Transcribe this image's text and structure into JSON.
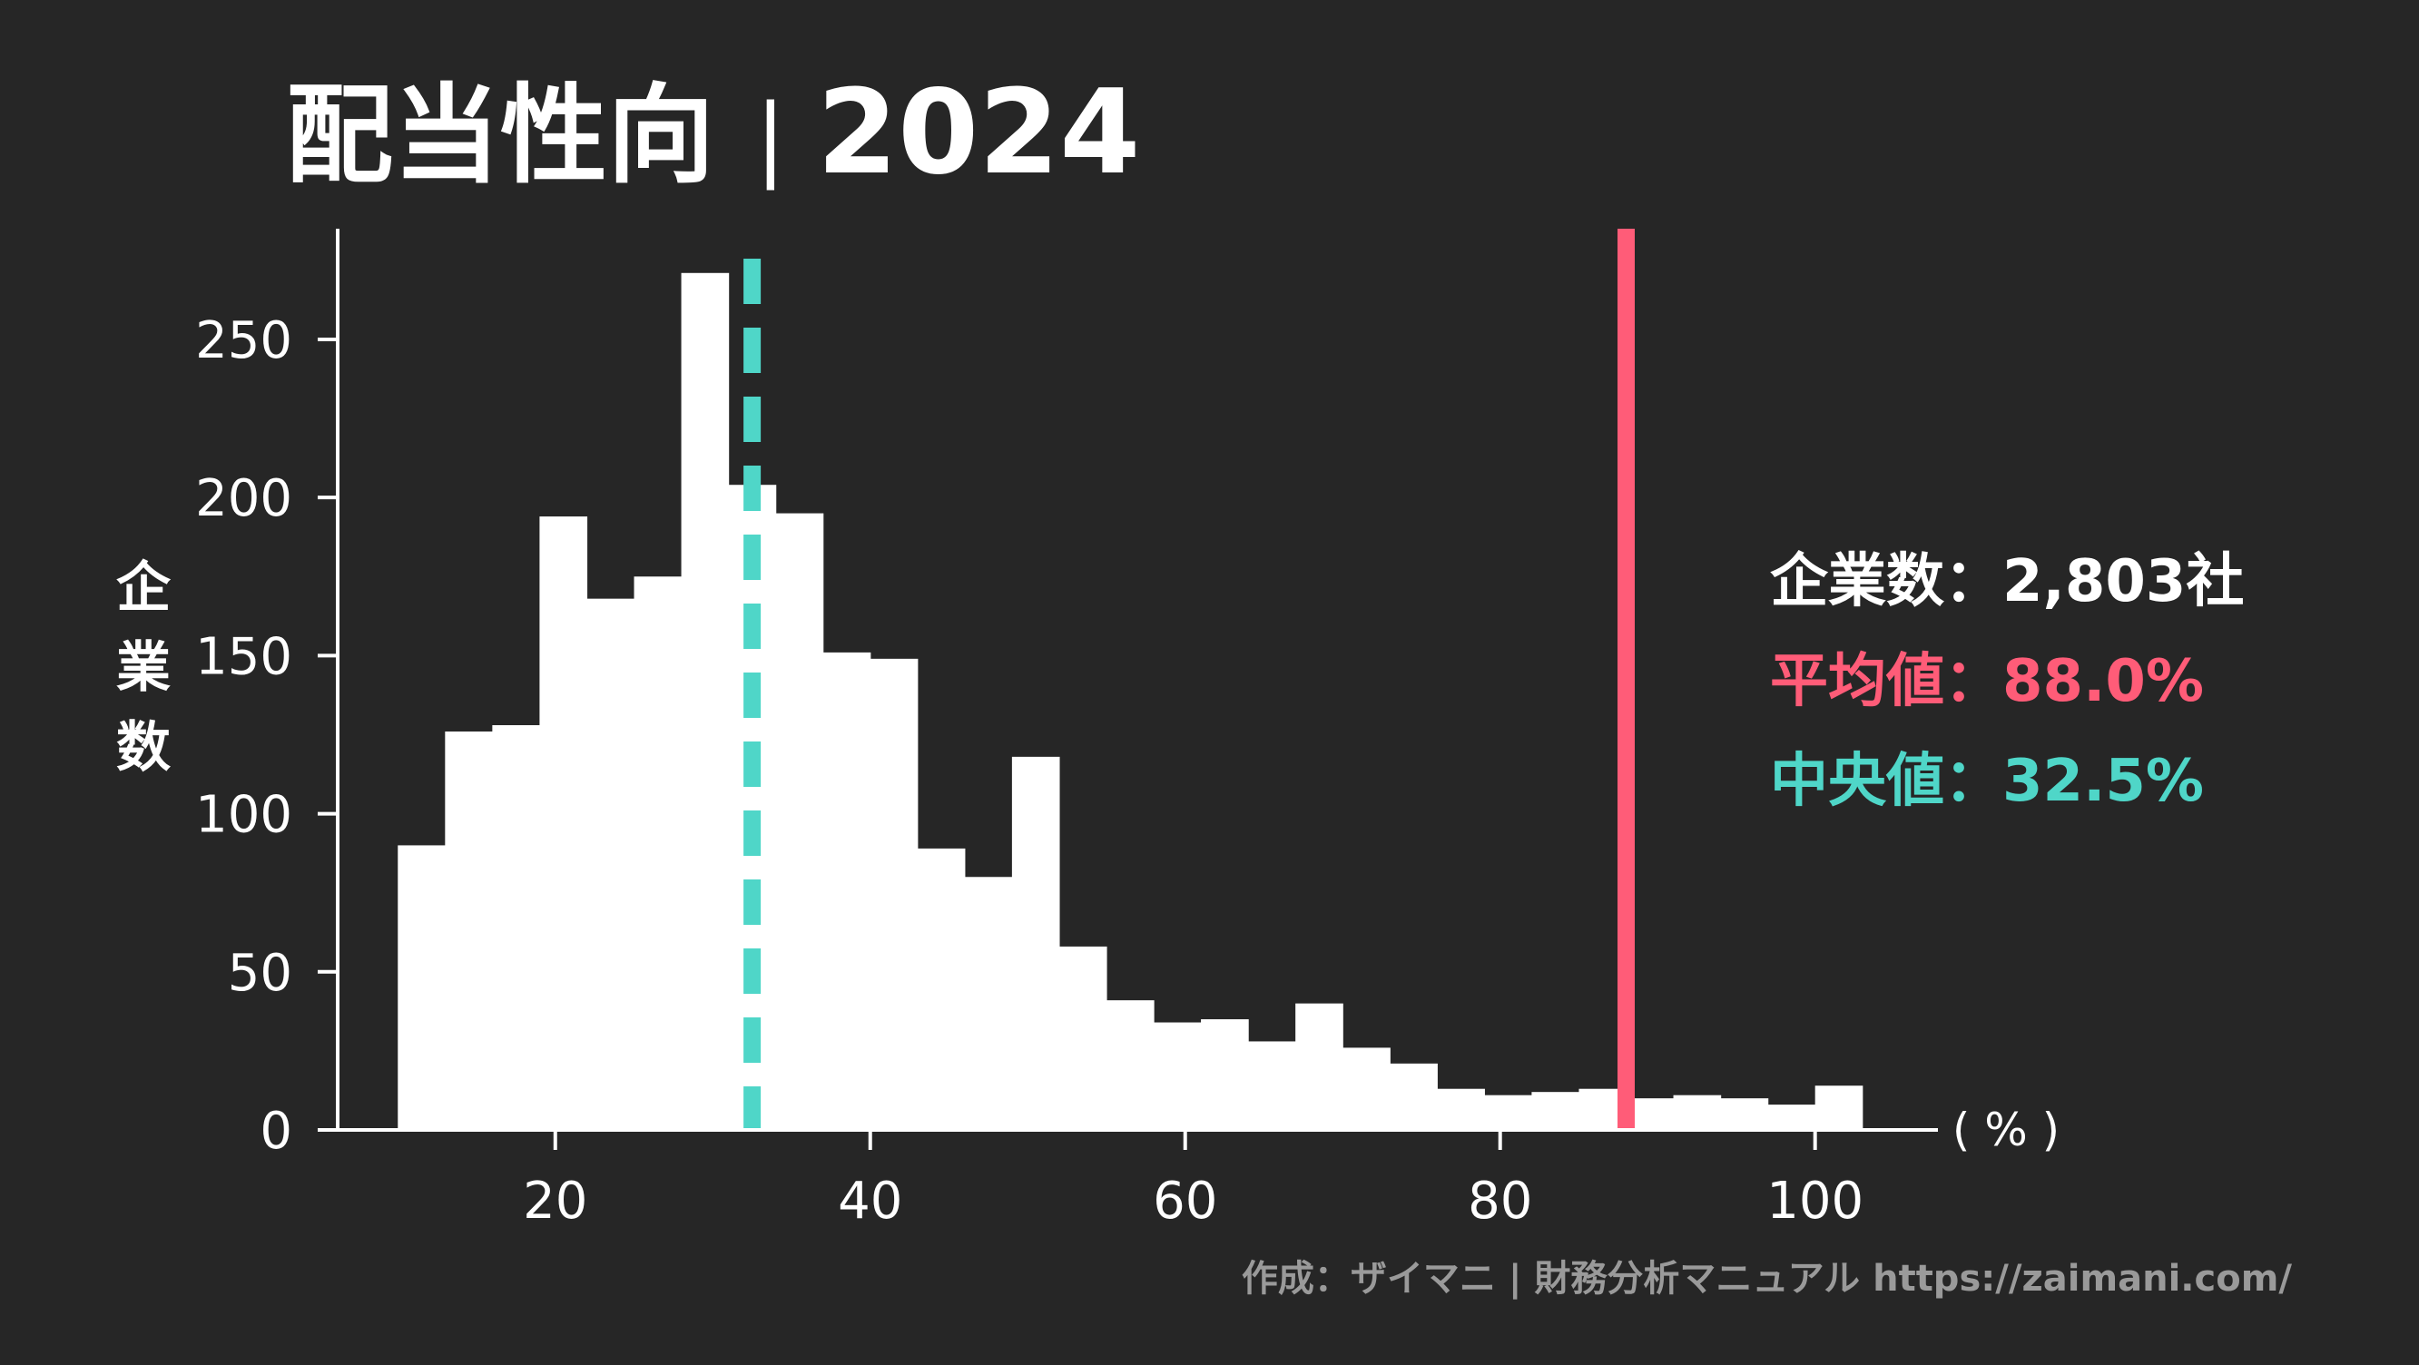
{
  "chart_data": {
    "type": "bar",
    "title": "配当性向",
    "title_separator": "|",
    "year": "2024",
    "ylabel": "企業数",
    "xunit": "( % )",
    "bin_width": 3.0,
    "bin_start": 10.0,
    "values": [
      90,
      126,
      128,
      194,
      168,
      175,
      271,
      204,
      195,
      151,
      149,
      89,
      80,
      118,
      58,
      41,
      34,
      35,
      28,
      40,
      26,
      21,
      13,
      11,
      12,
      13,
      10,
      11,
      10,
      8,
      14
    ],
    "xlim": [
      5.2,
      107.8
    ],
    "ylim": [
      0,
      285
    ],
    "xticks": [
      20,
      40,
      60,
      80,
      100
    ],
    "yticks": [
      0,
      50,
      100,
      150,
      200,
      250
    ],
    "mean": 88.0,
    "median": 32.5,
    "colors": {
      "background": "#262626",
      "bars": "#ffffff",
      "axis": "#ffffff",
      "mean": "#ff5c78",
      "median": "#4fd6c8",
      "credit": "#9a9a9a"
    }
  },
  "stats": {
    "count_label": "企業数",
    "count_value": "2,803社",
    "mean_label": "平均値",
    "mean_value": "88.0%",
    "median_label": "中央値",
    "median_value": "32.5%",
    "separator": "："
  },
  "credit": "作成：ザイマニ | 財務分析マニュアル https://zaimani.com/"
}
